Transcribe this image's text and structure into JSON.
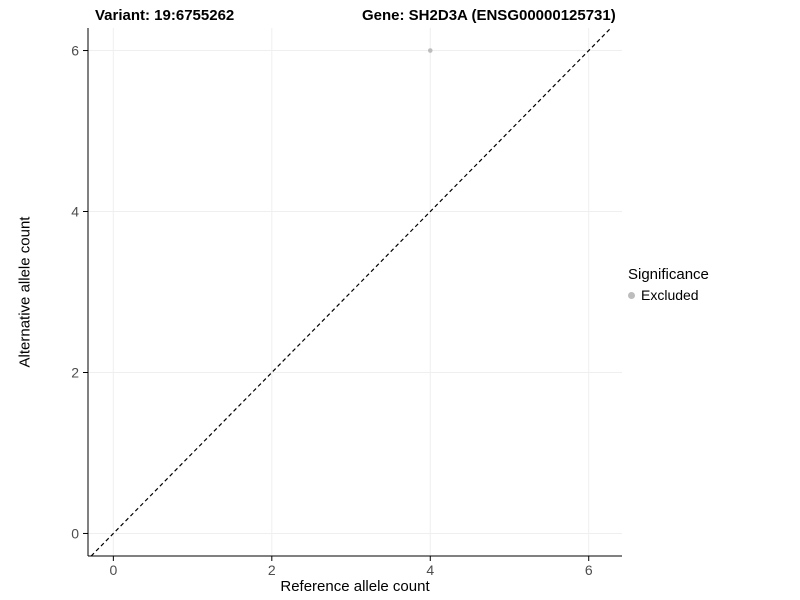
{
  "header": {
    "title_left": "Variant: 19:6755262",
    "title_right": "Gene: SH2D3A (ENSG00000125731)"
  },
  "chart_data": {
    "type": "scatter",
    "title": "Variant: 19:6755262    Gene: SH2D3A (ENSG00000125731)",
    "xlabel": "Reference allele count",
    "ylabel": "Alternative allele count",
    "xlim": [
      -0.32,
      6.42
    ],
    "ylim": [
      -0.28,
      6.28
    ],
    "xticks": [
      0,
      2,
      4,
      6
    ],
    "yticks": [
      0,
      2,
      4,
      6
    ],
    "grid": true,
    "grid_color": "#efefef",
    "axis_color": "#000000",
    "tick_label_color": "#4d4d4d",
    "identity_line": {
      "style": "dashed",
      "from": -0.28,
      "to": 6.28,
      "color": "#000000"
    },
    "series": [
      {
        "name": "Excluded",
        "color": "#bdbdbd",
        "points": [
          {
            "x": 4,
            "y": 6
          }
        ]
      }
    ],
    "legend": {
      "title": "Significance",
      "position": "right",
      "items": [
        {
          "label": "Excluded",
          "color": "#bdbdbd"
        }
      ]
    }
  }
}
